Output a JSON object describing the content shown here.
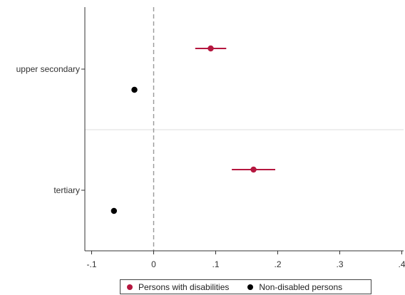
{
  "colors": {
    "persons_with_disabilities": "#b5173f",
    "non_disabled_persons": "#000000",
    "axis": "#333333",
    "separator": "#dddddd",
    "zero_line": "#999999"
  },
  "chart_data": {
    "type": "scatter",
    "subtype": "coefficient-plot-with-confidence-intervals",
    "title": "",
    "xlabel": "",
    "ylabel": "",
    "xlim": [
      -0.1,
      0.4
    ],
    "x_ticks": [
      -0.1,
      0,
      0.1,
      0.2,
      0.3,
      0.4
    ],
    "x_tick_labels": [
      "-.1",
      "0",
      ".1",
      ".2",
      ".3",
      ".4"
    ],
    "reference_line_x": 0,
    "grid": false,
    "legend_position": "bottom",
    "categories": [
      "upper secondary",
      "tertiary"
    ],
    "series": [
      {
        "name": "Persons with disabilities",
        "values": [
          0.092,
          0.161
        ],
        "ci_low": [
          0.067,
          0.126
        ],
        "ci_high": [
          0.117,
          0.196
        ]
      },
      {
        "name": "Non-disabled persons",
        "values": [
          -0.031,
          -0.064
        ],
        "ci_low": [
          -0.034,
          -0.067
        ],
        "ci_high": [
          -0.028,
          -0.061
        ]
      }
    ]
  }
}
